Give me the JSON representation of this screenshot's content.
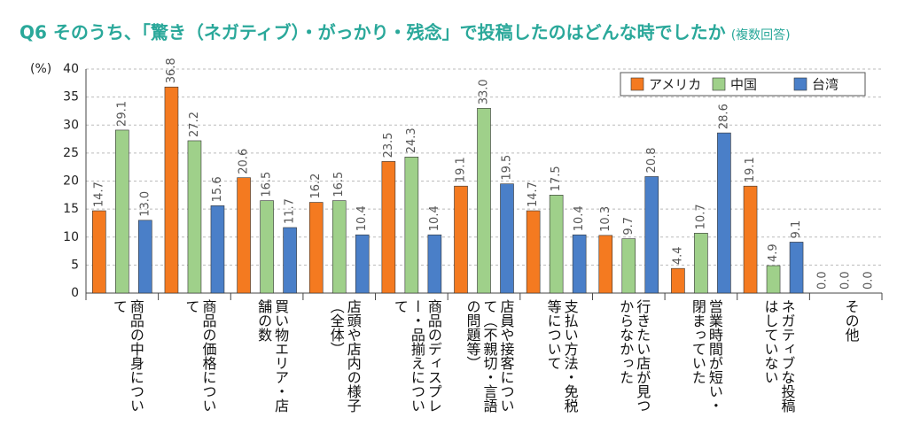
{
  "chart_data": {
    "type": "bar",
    "title": "Q6 そのうち、「驚き（ネガティブ）・がっかり・残念」で投稿したのはどんな時でしたか",
    "subtitle": "(複数回答)",
    "y_label": "(%)",
    "categories": [
      "商品の中身について",
      "商品の価格について",
      "買い物エリア・店舗の数",
      "店頭や店内の様子（全体）",
      "商品のディスプレー・品揃えについて",
      "店員や接客について（不親切・言語の問題等）",
      "支払い方法・免税等について",
      "行きたい店が見つからなかった",
      "営業時間が短い・閉まっていた",
      "ネガティブな投稿はしていない",
      "その他"
    ],
    "series": [
      {
        "name": "アメリカ",
        "color": "#f47a20",
        "values": [
          14.7,
          36.8,
          20.6,
          16.2,
          23.5,
          19.1,
          14.7,
          10.3,
          4.4,
          19.1,
          0
        ],
        "value_labels": [
          "14.7",
          "36.8",
          "20.6",
          "16.2",
          "23.5",
          "19.1",
          "14.7",
          "10.3",
          "4.4",
          "19.1",
          "0.0"
        ]
      },
      {
        "name": "中国",
        "color": "#9fd08a",
        "values": [
          29.1,
          27.2,
          16.5,
          16.5,
          24.3,
          33.0,
          17.5,
          9.7,
          10.7,
          4.9,
          0
        ],
        "value_labels": [
          "29.1",
          "27.2",
          "16.5",
          "16.5",
          "24.3",
          "33.0",
          "17.5",
          "9.7",
          "10.7",
          "4.9",
          "0.0"
        ]
      },
      {
        "name": "台湾",
        "color": "#4a7fc8",
        "values": [
          13.0,
          15.6,
          11.7,
          10.4,
          10.4,
          19.5,
          10.4,
          20.8,
          28.6,
          9.1,
          0
        ],
        "value_labels": [
          "13.0",
          "15.6",
          "11.7",
          "10.4",
          "10.4",
          "19.5",
          "10.4",
          "20.8",
          "28.6",
          "9.1",
          "0.0"
        ]
      }
    ],
    "ylim": [
      0,
      40
    ],
    "yticks": [
      0,
      5,
      10,
      15,
      20,
      25,
      30,
      35,
      40
    ],
    "grid": true,
    "legend": "top-right"
  }
}
